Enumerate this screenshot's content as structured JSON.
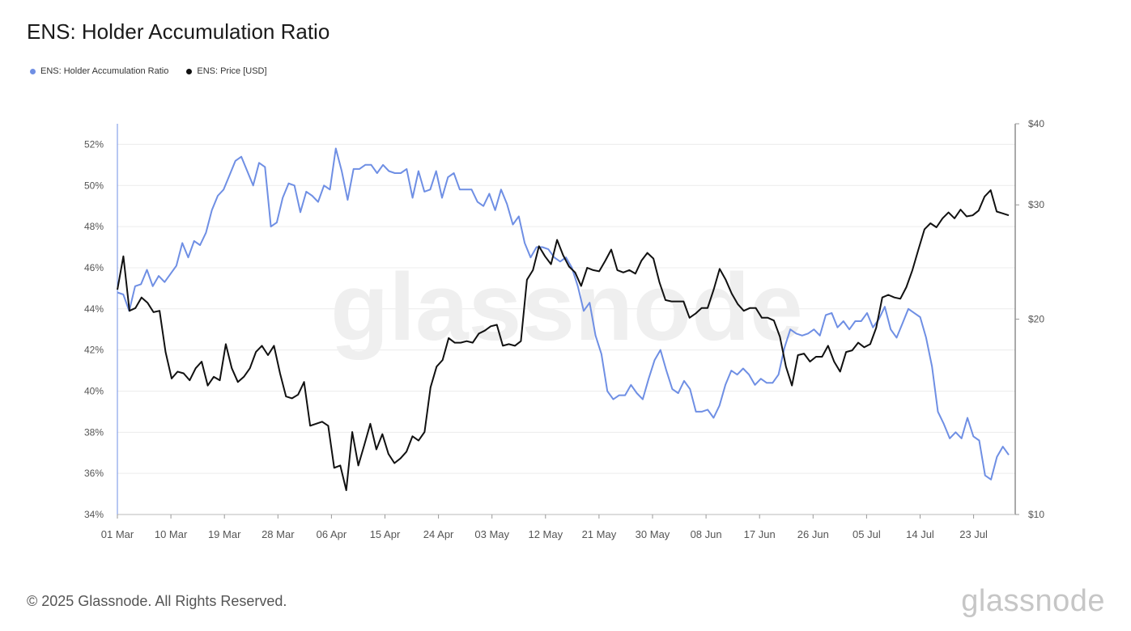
{
  "title": "ENS: Holder Accumulation Ratio",
  "watermark": "glassnode",
  "copyright": "© 2025 Glassnode. All Rights Reserved.",
  "footer_logo": "glassnode",
  "colors": {
    "ratio": "#6f8fe4",
    "price": "#111111",
    "grid": "#ececec",
    "axis": "#999999"
  },
  "chart_data": {
    "type": "line",
    "title": "ENS: Holder Accumulation Ratio",
    "legend_position": "top-left",
    "grid": true,
    "x_start": "2025-03-01",
    "x_end": "2025-07-30",
    "x_tick_labels": [
      "01 Mar",
      "10 Mar",
      "19 Mar",
      "28 Mar",
      "06 Apr",
      "15 Apr",
      "24 Apr",
      "03 May",
      "12 May",
      "21 May",
      "30 May",
      "08 Jun",
      "17 Jun",
      "26 Jun",
      "05 Jul",
      "14 Jul",
      "23 Jul"
    ],
    "y_left": {
      "ticks": [
        "34%",
        "36%",
        "38%",
        "40%",
        "42%",
        "44%",
        "46%",
        "48%",
        "50%",
        "52%"
      ],
      "range": [
        34,
        53
      ]
    },
    "y_right": {
      "ticks": [
        "$10",
        "$20",
        "$30",
        "$40"
      ],
      "range": [
        10,
        40
      ],
      "scale": "log"
    },
    "series": [
      {
        "name": "ENS: Holder Accumulation Ratio",
        "axis": "left",
        "unit": "%",
        "values": [
          44.8,
          44.7,
          43.9,
          45.1,
          45.2,
          45.9,
          45.1,
          45.6,
          45.3,
          45.7,
          46.1,
          47.2,
          46.5,
          47.3,
          47.1,
          47.7,
          48.8,
          49.5,
          49.8,
          50.5,
          51.2,
          51.4,
          50.7,
          50.0,
          51.1,
          50.9,
          48.0,
          48.2,
          49.4,
          50.1,
          50.0,
          48.7,
          49.7,
          49.5,
          49.2,
          50.0,
          49.8,
          51.8,
          50.7,
          49.3,
          50.8,
          50.8,
          51.0,
          51.0,
          50.6,
          51.0,
          50.7,
          50.6,
          50.6,
          50.8,
          49.4,
          50.7,
          49.7,
          49.8,
          50.7,
          49.4,
          50.4,
          50.6,
          49.8,
          49.8,
          49.8,
          49.2,
          49.0,
          49.6,
          48.8,
          49.8,
          49.1,
          48.1,
          48.5,
          47.2,
          46.5,
          47.0,
          47.0,
          46.9,
          46.5,
          46.3,
          46.5,
          46.0,
          45.1,
          43.9,
          44.3,
          42.7,
          41.8,
          40.0,
          39.6,
          39.8,
          39.8,
          40.3,
          39.9,
          39.6,
          40.6,
          41.5,
          42.0,
          41.0,
          40.1,
          39.9,
          40.5,
          40.1,
          39.0,
          39.0,
          39.1,
          38.7,
          39.3,
          40.3,
          41.0,
          40.8,
          41.1,
          40.8,
          40.3,
          40.6,
          40.4,
          40.4,
          40.8,
          42.1,
          43.0,
          42.8,
          42.7,
          42.8,
          43.0,
          42.7,
          43.7,
          43.8,
          43.1,
          43.4,
          43.0,
          43.4,
          43.4,
          43.8,
          43.1,
          43.5,
          44.1,
          43.0,
          42.6,
          43.3,
          44.0,
          43.8,
          43.6,
          42.6,
          41.2,
          39.0,
          38.4,
          37.7,
          38.0,
          37.7,
          38.7,
          37.8,
          37.6,
          35.9,
          35.7,
          36.8,
          37.3,
          36.9
        ]
      },
      {
        "name": "ENS: Price [USD]",
        "axis": "right",
        "unit": "USD",
        "values": [
          22.2,
          25.0,
          20.6,
          20.8,
          21.6,
          21.2,
          20.5,
          20.6,
          17.8,
          16.2,
          16.6,
          16.5,
          16.1,
          16.8,
          17.2,
          15.8,
          16.3,
          16.1,
          18.3,
          16.8,
          16.0,
          16.3,
          16.8,
          17.8,
          18.2,
          17.6,
          18.2,
          16.5,
          15.2,
          15.1,
          15.3,
          16.0,
          13.7,
          13.8,
          13.9,
          13.7,
          11.8,
          11.9,
          10.9,
          13.4,
          11.9,
          12.8,
          13.8,
          12.6,
          13.3,
          12.4,
          12.0,
          12.2,
          12.5,
          13.2,
          13.0,
          13.4,
          15.7,
          16.9,
          17.3,
          18.7,
          18.4,
          18.4,
          18.5,
          18.4,
          19.0,
          19.2,
          19.5,
          19.6,
          18.2,
          18.3,
          18.2,
          18.5,
          23.0,
          23.8,
          25.9,
          25.0,
          24.3,
          26.5,
          25.1,
          24.1,
          23.6,
          22.5,
          24.0,
          23.8,
          23.7,
          24.6,
          25.6,
          23.8,
          23.6,
          23.8,
          23.5,
          24.6,
          25.3,
          24.8,
          22.8,
          21.4,
          21.3,
          21.3,
          21.3,
          20.1,
          20.4,
          20.8,
          20.8,
          22.2,
          23.9,
          23.0,
          21.9,
          21.1,
          20.6,
          20.8,
          20.8,
          20.1,
          20.1,
          19.9,
          18.8,
          16.9,
          15.8,
          17.6,
          17.7,
          17.2,
          17.5,
          17.5,
          18.2,
          17.2,
          16.6,
          17.8,
          17.9,
          18.4,
          18.1,
          18.3,
          19.4,
          21.6,
          21.8,
          21.6,
          21.5,
          22.4,
          23.8,
          25.6,
          27.5,
          28.1,
          27.7,
          28.6,
          29.2,
          28.6,
          29.5,
          28.8,
          28.9,
          29.4,
          30.9,
          31.6,
          29.3,
          29.1,
          28.9
        ]
      }
    ]
  }
}
